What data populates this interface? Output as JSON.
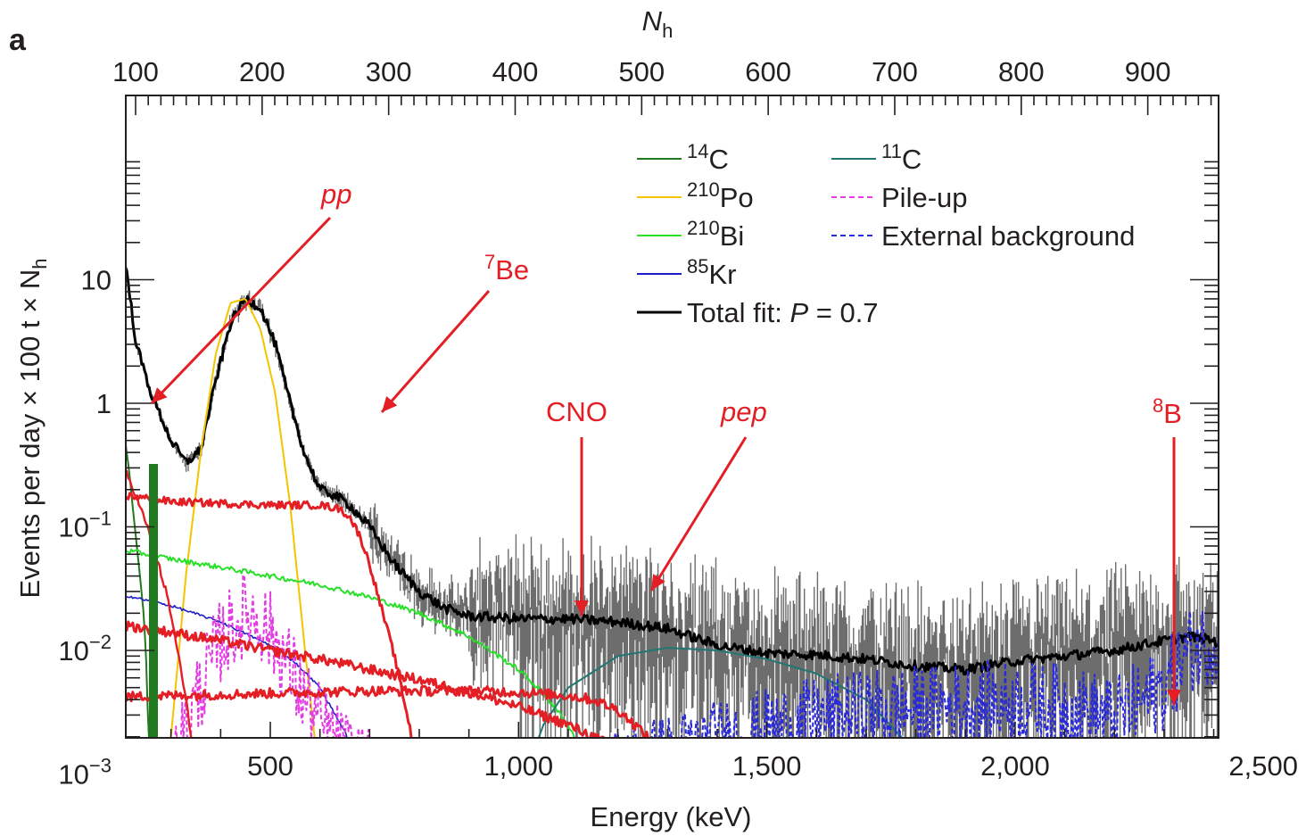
{
  "panel_label": "a",
  "chart_data": {
    "type": "line",
    "title": "",
    "xlabel": "Energy (keV)",
    "x_ticks": [
      500,
      1000,
      1500,
      2000,
      2500
    ],
    "x_tick_labels": [
      "500",
      "1,000",
      "1,500",
      "2,000",
      "2,500"
    ],
    "xlim": [
      205,
      2660
    ],
    "x2label": "N",
    "x2label_sub": "h",
    "x2_ticks": [
      100,
      200,
      300,
      400,
      500,
      600,
      700,
      800,
      900
    ],
    "x2_tick_labels": [
      "100",
      "200",
      "300",
      "400",
      "500",
      "600",
      "700",
      "800",
      "900"
    ],
    "x2lim": [
      92,
      960
    ],
    "ylabel": "Events per day × 100 t × N",
    "ylabel_sub": "h",
    "yscale": "log",
    "ylim": [
      0.0002,
      30
    ],
    "y_ticks": [
      10,
      1,
      0.1,
      0.01,
      0.001
    ],
    "y_tick_labels": [
      {
        "base": "10",
        "exp": ""
      },
      {
        "base": "1",
        "exp": ""
      },
      {
        "base": "10",
        "exp": "−1"
      },
      {
        "base": "10",
        "exp": "−2"
      },
      {
        "base": "10",
        "exp": "−3"
      }
    ],
    "grid": false,
    "legend_position": "top-right",
    "legend": [
      {
        "sup": "14",
        "text": "C",
        "color": "#1f7a1f",
        "dash": "solid"
      },
      {
        "sup": "210",
        "text": "Po",
        "color": "#f5c400",
        "dash": "solid"
      },
      {
        "sup": "210",
        "text": "Bi",
        "color": "#29e029",
        "dash": "solid"
      },
      {
        "sup": "85",
        "text": "Kr",
        "color": "#1c1cc8",
        "dash": "solid"
      },
      {
        "sup": "",
        "text": "Total fit: ",
        "italic": "P",
        "suffix": " = 0.7",
        "color": "#000000",
        "dash": "solid"
      },
      {
        "sup": "11",
        "text": "C",
        "color": "#1f7672",
        "dash": "solid"
      },
      {
        "sup": "",
        "text": "Pile-up",
        "color": "#e33ce3",
        "dash": "dashed"
      },
      {
        "sup": "",
        "text": "External background",
        "color": "#2a2ad8",
        "dash": "dashed"
      }
    ],
    "annotations": [
      {
        "text": "pp",
        "italic": true
      },
      {
        "text": "Be",
        "sup": "7",
        "italic": false
      },
      {
        "text": "CNO",
        "italic": false
      },
      {
        "text": "pep",
        "italic": true
      },
      {
        "text": "B",
        "sup": "8",
        "italic": false
      }
    ],
    "series": [
      {
        "key": "data",
        "color": "#6d6d6d",
        "x": [
          205,
          230,
          260,
          300,
          330,
          360,
          390,
          420,
          450,
          480,
          510,
          540,
          570,
          600,
          630,
          660,
          700,
          750,
          800,
          850,
          900,
          1000,
          1100,
          1200,
          1300,
          1400,
          1500,
          1600,
          1700,
          1800,
          1900,
          2000,
          2100,
          2200,
          2300,
          2350,
          2400,
          2450,
          2500,
          2550,
          2600,
          2660
        ],
        "y": [
          17,
          3,
          1.2,
          0.5,
          0.33,
          0.42,
          1.5,
          4.5,
          7,
          6,
          3,
          1,
          0.38,
          0.2,
          0.18,
          0.15,
          0.1,
          0.05,
          0.03,
          0.022,
          0.019,
          0.018,
          0.018,
          0.017,
          0.015,
          0.011,
          0.0095,
          0.0092,
          0.0085,
          0.0075,
          0.007,
          0.0082,
          0.009,
          0.01,
          0.012,
          0.013,
          0.012,
          0.009,
          0.006,
          0.003,
          0.0018,
          0.0009
        ]
      },
      {
        "key": "total",
        "color": "#000000",
        "x": [
          205,
          230,
          260,
          300,
          330,
          360,
          390,
          420,
          450,
          480,
          510,
          540,
          570,
          600,
          630,
          660,
          700,
          750,
          800,
          850,
          900,
          1000,
          1100,
          1200,
          1300,
          1400,
          1500,
          1600,
          1700,
          1800,
          1900,
          2000,
          2100,
          2200,
          2300,
          2350,
          2400,
          2450,
          2500,
          2550,
          2600,
          2660
        ],
        "y": [
          17,
          3,
          1.2,
          0.5,
          0.33,
          0.42,
          1.5,
          4.5,
          7,
          6,
          3,
          1,
          0.38,
          0.2,
          0.18,
          0.15,
          0.1,
          0.05,
          0.03,
          0.022,
          0.019,
          0.018,
          0.018,
          0.017,
          0.015,
          0.011,
          0.0095,
          0.0092,
          0.0085,
          0.0075,
          0.007,
          0.0082,
          0.009,
          0.01,
          0.012,
          0.013,
          0.012,
          0.009,
          0.006,
          0.003,
          0.0018,
          0.0009
        ]
      },
      {
        "key": "c14",
        "color": "#1f7a1f",
        "x": [
          205,
          215,
          225,
          235,
          245,
          252,
          258
        ],
        "y": [
          0.6,
          0.3,
          0.12,
          0.05,
          0.02,
          0.006,
          0.0002
        ]
      },
      {
        "key": "po210",
        "color": "#f5c400",
        "x": [
          280,
          300,
          330,
          360,
          390,
          420,
          450,
          480,
          510,
          540,
          570,
          600,
          630
        ],
        "y": [
          0.0002,
          0.002,
          0.04,
          0.4,
          2.5,
          6.5,
          7,
          4,
          1.2,
          0.15,
          0.01,
          0.0008,
          0.0002
        ]
      },
      {
        "key": "bi210",
        "color": "#29e029",
        "x": [
          205,
          300,
          400,
          500,
          600,
          700,
          800,
          900,
          1000,
          1050,
          1100,
          1150,
          1200,
          1250
        ],
        "y": [
          0.065,
          0.055,
          0.047,
          0.04,
          0.034,
          0.027,
          0.02,
          0.013,
          0.007,
          0.0045,
          0.0025,
          0.001,
          0.0003,
          0.0002
        ]
      },
      {
        "key": "kr85",
        "color": "#1c1cc8",
        "x": [
          205,
          300,
          400,
          500,
          550,
          600,
          650,
          680,
          700,
          720,
          750
        ],
        "y": [
          0.028,
          0.023,
          0.017,
          0.011,
          0.008,
          0.005,
          0.0022,
          0.0011,
          0.0005,
          0.00025,
          0.0002
        ]
      },
      {
        "key": "c11",
        "color": "#1f7672",
        "x": [
          960,
          1000,
          1050,
          1100,
          1200,
          1300,
          1400,
          1500,
          1600,
          1700,
          1800,
          1850,
          1880,
          1900
        ],
        "y": [
          0.0002,
          0.0007,
          0.0025,
          0.005,
          0.009,
          0.0105,
          0.01,
          0.0085,
          0.0065,
          0.004,
          0.0015,
          0.0006,
          0.0003,
          0.0002
        ]
      },
      {
        "key": "pileup",
        "color": "#e33ce3",
        "x": [
          205,
          250,
          300,
          350,
          400,
          450,
          480,
          510,
          540,
          570,
          600,
          630,
          660,
          690,
          720,
          760,
          800,
          850,
          900,
          950
        ],
        "y": [
          0.0002,
          0.0004,
          0.001,
          0.004,
          0.012,
          0.02,
          0.018,
          0.012,
          0.007,
          0.004,
          0.0025,
          0.0018,
          0.0014,
          0.0011,
          0.0008,
          0.0005,
          0.0004,
          0.0003,
          0.0003,
          0.0002
        ]
      },
      {
        "key": "extbg",
        "color": "#2a2ad8",
        "x": [
          700,
          800,
          900,
          1000,
          1100,
          1200,
          1300,
          1400,
          1500,
          1600,
          1700,
          1800,
          1900,
          2000,
          2100,
          2200,
          2300,
          2350,
          2400,
          2450,
          2500,
          2560,
          2600,
          2660
        ],
        "y": [
          0.0002,
          0.0003,
          0.0004,
          0.00055,
          0.0008,
          0.0011,
          0.0014,
          0.0018,
          0.0022,
          0.0027,
          0.0032,
          0.0034,
          0.0036,
          0.0038,
          0.0035,
          0.0028,
          0.005,
          0.01,
          0.012,
          0.009,
          0.003,
          0.001,
          0.0005,
          0.0003
        ]
      },
      {
        "key": "pp",
        "color": "#e31e24",
        "x": [
          205,
          230,
          260,
          290,
          310,
          330,
          345,
          360,
          375,
          390
        ],
        "y": [
          0.3,
          0.18,
          0.08,
          0.03,
          0.012,
          0.004,
          0.0015,
          0.0006,
          0.0003,
          0.0002
        ]
      },
      {
        "key": "be7",
        "color": "#e31e24",
        "x": [
          205,
          300,
          400,
          500,
          600,
          640,
          660,
          680,
          700,
          720,
          750,
          780,
          800,
          820,
          840,
          860
        ],
        "y": [
          0.18,
          0.16,
          0.155,
          0.15,
          0.15,
          0.14,
          0.12,
          0.085,
          0.05,
          0.025,
          0.009,
          0.0025,
          0.0009,
          0.0004,
          0.0002,
          0.0002
        ]
      },
      {
        "key": "cno",
        "color": "#e31e24",
        "x": [
          205,
          300,
          400,
          500,
          600,
          700,
          800,
          900,
          1000,
          1100,
          1200,
          1300,
          1400,
          1450,
          1480,
          1500
        ],
        "y": [
          0.016,
          0.014,
          0.012,
          0.01,
          0.0085,
          0.007,
          0.0058,
          0.0046,
          0.0035,
          0.0025,
          0.0016,
          0.0009,
          0.0004,
          0.00025,
          0.0002,
          0.0002
        ]
      },
      {
        "key": "pep",
        "color": "#e31e24",
        "x": [
          205,
          300,
          400,
          500,
          600,
          700,
          800,
          900,
          1000,
          1100,
          1150,
          1200,
          1250,
          1300,
          1350,
          1400,
          1450,
          1500
        ],
        "y": [
          0.0042,
          0.0043,
          0.0044,
          0.0045,
          0.0046,
          0.0047,
          0.0047,
          0.0047,
          0.0046,
          0.0043,
          0.004,
          0.0033,
          0.0022,
          0.0012,
          0.0006,
          0.0003,
          0.0002,
          0.0002
        ]
      },
      {
        "key": "b8",
        "color": "#e31e24",
        "x": [
          205,
          800,
          1400,
          2000,
          2400,
          2660
        ],
        "y": [
          0.00021,
          0.00022,
          0.00023,
          0.00025,
          0.00028,
          0.0003
        ]
      }
    ]
  }
}
